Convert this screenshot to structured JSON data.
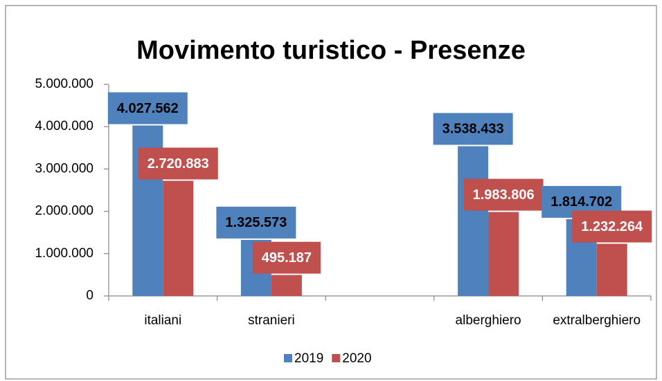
{
  "chart_data": {
    "type": "bar",
    "title": "Movimento turistico - Presenze",
    "categories": [
      "italiani",
      "stranieri",
      null,
      "alberghiero",
      "extralberghiero"
    ],
    "series": [
      {
        "name": "2019",
        "color": "#4f81bd",
        "values": [
          4027562,
          1325573,
          null,
          3538433,
          1814702
        ],
        "value_labels": [
          "4.027.562",
          "1.325.573",
          null,
          "3.538.433",
          "1.814.702"
        ]
      },
      {
        "name": "2020",
        "color": "#c0504d",
        "values": [
          2720883,
          495187,
          null,
          1983806,
          1232264
        ],
        "value_labels": [
          "2.720.883",
          "495.187",
          null,
          "1.983.806",
          "1.232.264"
        ]
      }
    ],
    "ylim": [
      0,
      5000000
    ],
    "yticks": [
      0,
      {
        "value": 1000000,
        "label": "1.000.000"
      },
      {
        "value": 2000000,
        "label": "2.000.000"
      },
      {
        "value": 3000000,
        "label": "3.000.000"
      },
      {
        "value": 4000000,
        "label": "4.000.000"
      },
      {
        "value": 5000000,
        "label": "5.000.000"
      }
    ],
    "grid": false,
    "legend": "bottom"
  }
}
